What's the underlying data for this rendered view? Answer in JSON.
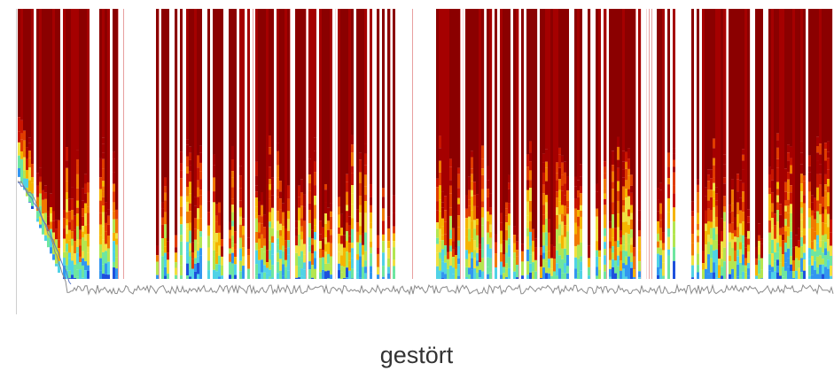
{
  "figure": {
    "caption": "gestört"
  }
}
